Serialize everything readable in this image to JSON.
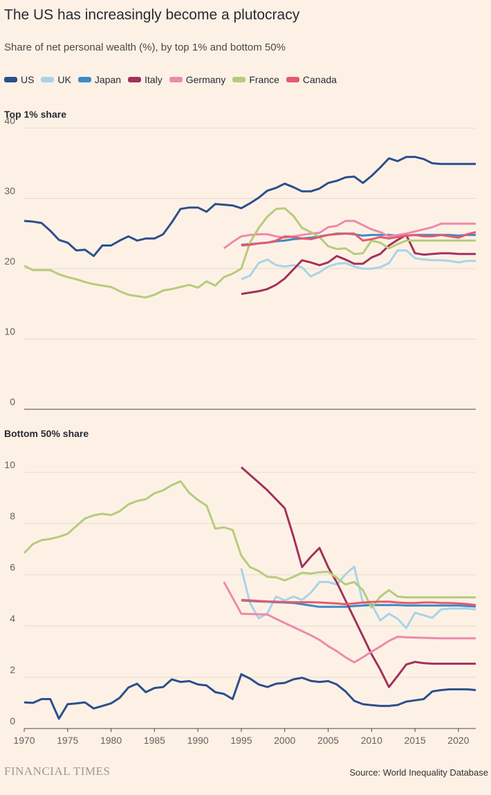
{
  "title": "The US has increasingly become a plutocracy",
  "subtitle": "Share of net personal wealth (%), by top 1% and bottom 50%",
  "legend": [
    {
      "name": "US",
      "color": "#2b4f8c"
    },
    {
      "name": "UK",
      "color": "#a8d4e8"
    },
    {
      "name": "Japan",
      "color": "#3d8ac8"
    },
    {
      "name": "Italy",
      "color": "#a3315a"
    },
    {
      "name": "Germany",
      "color": "#ee89ab"
    },
    {
      "name": "France",
      "color": "#b5cc7a"
    },
    {
      "name": "Canada",
      "color": "#e55a6c"
    }
  ],
  "footer": {
    "brand": "FINANCIAL TIMES",
    "source": "Source: World Inequality Database"
  },
  "chart_data": [
    {
      "type": "line",
      "title": "Top 1% share",
      "ylim": [
        0,
        40
      ],
      "yticks": [
        0,
        10,
        20,
        30,
        40
      ],
      "xlim": [
        1970,
        2022
      ],
      "xticks": [
        1970,
        1975,
        1980,
        1985,
        1990,
        1995,
        2000,
        2005,
        2010,
        2015,
        2020
      ],
      "grid": true,
      "series": [
        {
          "name": "US",
          "color": "#2b4f8c",
          "start": 1970,
          "values": [
            26.8,
            26.7,
            26.5,
            25.4,
            24.1,
            23.7,
            22.6,
            22.7,
            21.8,
            23.3,
            23.3,
            24.0,
            24.6,
            24.0,
            24.3,
            24.3,
            24.9,
            26.6,
            28.5,
            28.7,
            28.7,
            28.1,
            29.2,
            29.1,
            29.0,
            28.6,
            29.3,
            30.1,
            31.1,
            31.5,
            32.1,
            31.6,
            31.0,
            31.0,
            31.4,
            32.2,
            32.5,
            33.0,
            33.1,
            32.2,
            33.2,
            34.4,
            35.7,
            35.3,
            35.9,
            35.9,
            35.6,
            35.0,
            34.9,
            34.9,
            34.9,
            34.9,
            34.9
          ]
        },
        {
          "name": "UK",
          "color": "#a8d4e8",
          "start": 1995,
          "values": [
            18.5,
            19.0,
            20.8,
            21.3,
            20.5,
            20.3,
            20.5,
            20.2,
            18.9,
            19.5,
            20.3,
            20.7,
            20.8,
            20.3,
            20.0,
            20.0,
            20.2,
            20.8,
            22.6,
            22.6,
            21.5,
            21.3,
            21.2,
            21.2,
            21.1,
            20.9,
            21.1,
            21.1
          ]
        },
        {
          "name": "Japan",
          "color": "#3d8ac8",
          "start": 1995,
          "values": [
            23.4,
            23.5,
            23.6,
            23.7,
            23.9,
            24.0,
            24.2,
            24.3,
            24.4,
            24.6,
            24.8,
            25.0,
            25.0,
            24.9,
            24.7,
            24.8,
            24.8,
            24.8,
            24.7,
            24.7,
            24.8,
            24.8,
            24.8,
            24.8,
            24.8,
            24.7,
            24.8,
            24.8
          ]
        },
        {
          "name": "Italy",
          "color": "#a3315a",
          "start": 1995,
          "values": [
            16.4,
            16.6,
            16.8,
            17.1,
            17.7,
            18.6,
            19.9,
            21.2,
            20.9,
            20.5,
            20.9,
            21.8,
            21.3,
            20.7,
            20.7,
            21.6,
            22.1,
            23.3,
            24.1,
            24.8,
            22.2,
            22.0,
            22.1,
            22.2,
            22.2,
            22.1,
            22.1,
            22.1
          ]
        },
        {
          "name": "Germany",
          "color": "#ee89ab",
          "start": 1993,
          "values": [
            22.9,
            23.8,
            24.6,
            24.8,
            24.9,
            24.9,
            24.6,
            24.4,
            24.6,
            24.8,
            25.0,
            25.1,
            25.9,
            26.1,
            26.8,
            26.8,
            26.2,
            25.6,
            25.2,
            24.6,
            24.8,
            25.0,
            25.3,
            25.6,
            25.9,
            26.4,
            26.4,
            26.4,
            26.4,
            26.4
          ]
        },
        {
          "name": "France",
          "color": "#b5cc7a",
          "start": 1970,
          "values": [
            20.4,
            19.8,
            19.8,
            19.8,
            19.2,
            18.8,
            18.5,
            18.1,
            17.8,
            17.6,
            17.4,
            16.8,
            16.3,
            16.1,
            15.9,
            16.3,
            16.9,
            17.1,
            17.4,
            17.7,
            17.3,
            18.2,
            17.6,
            18.8,
            19.3,
            20.0,
            23.7,
            25.8,
            27.4,
            28.5,
            28.6,
            27.5,
            25.8,
            25.2,
            24.5,
            23.2,
            22.8,
            22.9,
            22.1,
            22.2,
            24.0,
            23.7,
            22.9,
            23.5,
            24.0,
            24.0,
            24.0,
            24.0,
            24.0,
            24.0,
            24.0,
            24.0,
            24.0
          ]
        },
        {
          "name": "Canada",
          "color": "#e55a6c",
          "start": 1995,
          "values": [
            23.3,
            23.4,
            23.6,
            23.7,
            24.0,
            24.6,
            24.5,
            24.3,
            24.2,
            24.5,
            24.8,
            24.9,
            25.0,
            25.0,
            24.0,
            24.2,
            24.5,
            24.3,
            24.5,
            24.7,
            24.8,
            24.6,
            24.6,
            24.8,
            24.6,
            24.4,
            24.9,
            25.2
          ]
        }
      ]
    },
    {
      "type": "line",
      "title": "Bottom 50% share",
      "ylim": [
        0,
        11
      ],
      "yticks": [
        0,
        2,
        4,
        6,
        8,
        10
      ],
      "xlim": [
        1970,
        2022
      ],
      "xticks": [
        1970,
        1975,
        1980,
        1985,
        1990,
        1995,
        2000,
        2005,
        2010,
        2015,
        2020
      ],
      "grid": true,
      "series": [
        {
          "name": "US",
          "color": "#2b4f8c",
          "start": 1970,
          "values": [
            1.02,
            1.0,
            1.15,
            1.15,
            0.38,
            0.95,
            0.98,
            1.02,
            0.78,
            0.88,
            0.98,
            1.2,
            1.6,
            1.75,
            1.42,
            1.58,
            1.62,
            1.92,
            1.82,
            1.85,
            1.72,
            1.68,
            1.42,
            1.35,
            1.15,
            2.12,
            1.95,
            1.72,
            1.62,
            1.75,
            1.78,
            1.92,
            1.98,
            1.86,
            1.82,
            1.85,
            1.72,
            1.45,
            1.08,
            0.95,
            0.91,
            0.88,
            0.88,
            0.92,
            1.05,
            1.1,
            1.15,
            1.45,
            1.5,
            1.53,
            1.53,
            1.53,
            1.5
          ]
        },
        {
          "name": "UK",
          "color": "#a8d4e8",
          "start": 1995,
          "values": [
            6.25,
            4.9,
            4.3,
            4.5,
            5.15,
            5.0,
            5.15,
            5.02,
            5.3,
            5.72,
            5.72,
            5.62,
            6.02,
            6.32,
            4.9,
            4.85,
            4.22,
            4.48,
            4.28,
            3.92,
            4.52,
            4.42,
            4.32,
            4.65,
            4.68,
            4.68,
            4.68,
            4.65
          ]
        },
        {
          "name": "Japan",
          "color": "#3d8ac8",
          "start": 1995,
          "values": [
            5.0,
            4.98,
            4.96,
            4.95,
            4.93,
            4.92,
            4.9,
            4.85,
            4.8,
            4.75,
            4.75,
            4.75,
            4.75,
            4.78,
            4.8,
            4.82,
            4.82,
            4.82,
            4.82,
            4.8,
            4.8,
            4.8,
            4.8,
            4.8,
            4.8,
            4.8,
            4.78,
            4.76
          ]
        },
        {
          "name": "Italy",
          "color": "#a3315a",
          "start": 1995,
          "values": [
            10.2,
            9.9,
            9.6,
            9.3,
            8.95,
            8.6,
            7.5,
            6.3,
            6.7,
            7.05,
            6.3,
            5.7,
            5.0,
            4.3,
            3.6,
            2.9,
            2.3,
            1.62,
            2.05,
            2.5,
            2.6,
            2.55,
            2.53,
            2.53,
            2.53,
            2.53,
            2.53,
            2.53
          ]
        },
        {
          "name": "Germany",
          "color": "#ee89ab",
          "start": 1993,
          "values": [
            5.72,
            5.1,
            4.48,
            4.47,
            4.46,
            4.45,
            4.28,
            4.12,
            3.96,
            3.8,
            3.64,
            3.46,
            3.22,
            3.02,
            2.78,
            2.58,
            2.78,
            3.0,
            3.2,
            3.42,
            3.58,
            3.56,
            3.55,
            3.54,
            3.53,
            3.52,
            3.52,
            3.52,
            3.52,
            3.52
          ]
        },
        {
          "name": "France",
          "color": "#b5cc7a",
          "start": 1970,
          "values": [
            6.85,
            7.2,
            7.35,
            7.4,
            7.48,
            7.6,
            7.9,
            8.2,
            8.32,
            8.38,
            8.33,
            8.48,
            8.75,
            8.88,
            8.95,
            9.18,
            9.3,
            9.5,
            9.65,
            9.2,
            8.92,
            8.7,
            7.8,
            7.85,
            7.75,
            6.75,
            6.3,
            6.15,
            5.92,
            5.9,
            5.78,
            5.92,
            6.08,
            6.05,
            6.1,
            6.12,
            5.88,
            5.62,
            5.72,
            5.4,
            4.72,
            5.15,
            5.4,
            5.15,
            5.12,
            5.12,
            5.12,
            5.12,
            5.12,
            5.12,
            5.12,
            5.12,
            5.12
          ]
        },
        {
          "name": "Canada",
          "color": "#e55a6c",
          "start": 1995,
          "values": [
            5.02,
            5.0,
            4.98,
            4.96,
            4.95,
            4.94,
            4.93,
            4.93,
            4.93,
            4.92,
            4.9,
            4.88,
            4.85,
            4.88,
            4.92,
            4.94,
            4.95,
            4.95,
            4.92,
            4.9,
            4.9,
            4.92,
            4.92,
            4.9,
            4.9,
            4.88,
            4.86,
            4.82
          ]
        }
      ]
    }
  ]
}
